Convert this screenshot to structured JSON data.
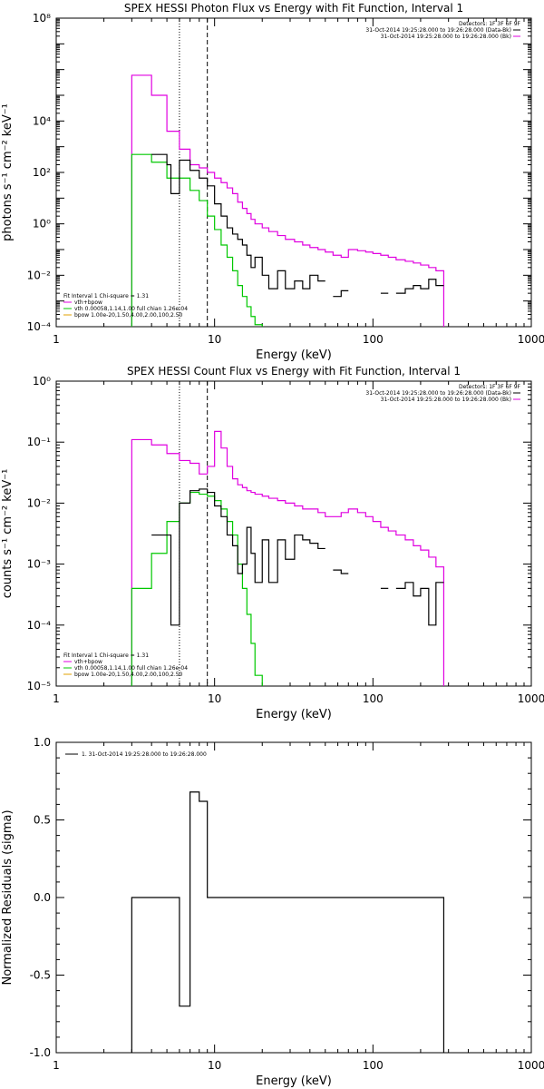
{
  "colors": {
    "total": "#e000e0",
    "vth": "#00c800",
    "bpow": "#e0a000",
    "data": "#000000",
    "frame": "#000000",
    "background": "#ffffff"
  },
  "chart_data": [
    {
      "type": "line",
      "title": "SPEX HESSI Photon Flux vs Energy with Fit Function, Interval 1",
      "xlabel": "Energy (keV)",
      "ylabel": "photons s⁻¹ cm⁻² keV⁻¹",
      "xscale": "log",
      "yscale": "log",
      "xlim": [
        1,
        1000
      ],
      "ylim": [
        0.0001,
        100000000
      ],
      "xticks": [
        1,
        10,
        100,
        1000
      ],
      "xtick_labels": [
        "1",
        "10",
        "100",
        "1000"
      ],
      "yticks": [
        0.0001,
        0.01,
        1,
        100,
        10000,
        100000000
      ],
      "ytick_labels": [
        "10⁻⁴",
        "10⁻²",
        "10⁰",
        "10²",
        "10⁴",
        "10⁸"
      ],
      "vlines": [
        {
          "x": 6,
          "style": "dotted"
        },
        {
          "x": 9,
          "style": "dashed"
        }
      ],
      "legend_top": [
        "Detectors: 1F 3F 6F 9F",
        "31-Oct-2014 19:25:28.000 to 19:26:28.000 (Data-Bk)",
        "31-Oct-2014 19:25:28.000 to 19:26:28.000 (Bk)"
      ],
      "legend_bottom": [
        "Fit Interval 1    Chi-square = 1.31",
        "vth+bpow",
        "vth 0.00058,1.14,1.00  full chian 1.26e-04",
        "bpow 1.00e-20,1.50,4.00,2.00,100,2.50"
      ],
      "series": [
        {
          "name": "vth+bpow",
          "color": "#e000e0",
          "edges": [
            3,
            4,
            5,
            6,
            7,
            8,
            9,
            10,
            11,
            12,
            13,
            14,
            15,
            16,
            17,
            18,
            20,
            22,
            25,
            28,
            32,
            36,
            40,
            45,
            50,
            56,
            63,
            70,
            80,
            90,
            100,
            112,
            125,
            140,
            160,
            180,
            200,
            225,
            250,
            280
          ],
          "values": [
            600000,
            100000,
            4000,
            800,
            200,
            150,
            100,
            60,
            40,
            25,
            15,
            7,
            4,
            2.5,
            1.5,
            1,
            0.7,
            0.5,
            0.35,
            0.25,
            0.2,
            0.15,
            0.12,
            0.1,
            0.08,
            0.06,
            0.05,
            0.1,
            0.09,
            0.08,
            0.07,
            0.06,
            0.05,
            0.04,
            0.035,
            0.03,
            0.025,
            0.02,
            0.015
          ],
          "floor": 0.0001
        },
        {
          "name": "vth",
          "color": "#00c800",
          "edges": [
            3,
            4,
            5,
            6,
            7,
            8,
            9,
            10,
            11,
            12,
            13,
            14,
            15,
            16,
            17,
            18,
            20
          ],
          "values": [
            500,
            250,
            60,
            60,
            20,
            8,
            2,
            0.6,
            0.15,
            0.05,
            0.015,
            0.004,
            0.0015,
            0.0006,
            0.00025,
            0.00012
          ],
          "floor": 0.0001
        },
        {
          "name": "data",
          "color": "#000000",
          "segments": [
            {
              "edges": [
                4,
                5,
                5.3,
                6,
                7,
                8,
                9,
                10,
                11,
                12,
                13,
                14,
                15,
                16,
                17,
                18,
                20,
                22,
                25,
                28,
                32,
                36,
                40,
                45,
                50
              ],
              "values": [
                500,
                200,
                15,
                300,
                120,
                60,
                30,
                6,
                2,
                0.7,
                0.4,
                0.25,
                0.15,
                0.06,
                0.02,
                0.05,
                0.01,
                0.003,
                0.015,
                0.003,
                0.006,
                0.003,
                0.01,
                0.006
              ]
            },
            {
              "edges": [
                56,
                63,
                70
              ],
              "values": [
                0.0015,
                0.0025
              ]
            },
            {
              "edges": [
                112,
                125
              ],
              "values": [
                0.002
              ]
            },
            {
              "edges": [
                140,
                160,
                180,
                200,
                225,
                250,
                280
              ],
              "values": [
                0.002,
                0.003,
                0.004,
                0.003,
                0.007,
                0.004
              ]
            }
          ]
        }
      ]
    },
    {
      "type": "line",
      "title": "SPEX HESSI Count Flux vs Energy with Fit Function, Interval 1",
      "xlabel": "Energy (keV)",
      "ylabel": "counts s⁻¹ cm⁻² keV⁻¹",
      "xscale": "log",
      "yscale": "log",
      "xlim": [
        1,
        1000
      ],
      "ylim": [
        1e-05,
        1
      ],
      "xticks": [
        1,
        10,
        100,
        1000
      ],
      "xtick_labels": [
        "1",
        "10",
        "100",
        "1000"
      ],
      "yticks": [
        1e-05,
        0.0001,
        0.001,
        0.01,
        0.1,
        1
      ],
      "ytick_labels": [
        "10⁻⁵",
        "10⁻⁴",
        "10⁻³",
        "10⁻²",
        "10⁻¹",
        "10⁰"
      ],
      "vlines": [
        {
          "x": 6,
          "style": "dotted"
        },
        {
          "x": 9,
          "style": "dashed"
        }
      ],
      "legend_top": [
        "Detectors: 1F 3F 6F 9F",
        "31-Oct-2014 19:25:28.000 to 19:26:28.000 (Data-Bk)",
        "31-Oct-2014 19:25:28.000 to 19:26:28.000 (Bk)"
      ],
      "legend_bottom": [
        "Fit Interval 1    Chi-square = 1.31",
        "vth+bpow",
        "vth 0.00058,1.14,1.00  full chian 1.26e-04",
        "bpow 1.00e-20,1.50,4.00,2.00,100,2.50"
      ],
      "series": [
        {
          "name": "vth+bpow",
          "color": "#e000e0",
          "edges": [
            3,
            4,
            5,
            6,
            7,
            8,
            9,
            10,
            11,
            12,
            13,
            14,
            15,
            16,
            17,
            18,
            20,
            22,
            25,
            28,
            32,
            36,
            40,
            45,
            50,
            56,
            63,
            70,
            80,
            90,
            100,
            112,
            125,
            140,
            160,
            180,
            200,
            225,
            250,
            280
          ],
          "values": [
            0.11,
            0.09,
            0.065,
            0.05,
            0.045,
            0.03,
            0.04,
            0.15,
            0.08,
            0.04,
            0.025,
            0.02,
            0.018,
            0.016,
            0.015,
            0.014,
            0.013,
            0.012,
            0.011,
            0.01,
            0.009,
            0.008,
            0.008,
            0.007,
            0.006,
            0.006,
            0.007,
            0.008,
            0.007,
            0.006,
            0.005,
            0.004,
            0.0035,
            0.003,
            0.0025,
            0.002,
            0.0017,
            0.0013,
            0.0009
          ],
          "floor": 1e-05
        },
        {
          "name": "vth",
          "color": "#00c800",
          "edges": [
            3,
            4,
            5,
            6,
            7,
            8,
            9,
            10,
            11,
            12,
            13,
            14,
            15,
            16,
            17,
            18,
            20
          ],
          "values": [
            0.0004,
            0.0015,
            0.005,
            0.01,
            0.015,
            0.014,
            0.013,
            0.011,
            0.008,
            0.005,
            0.003,
            0.001,
            0.0004,
            0.00015,
            5e-05,
            1.5e-05
          ],
          "floor": 1e-05
        },
        {
          "name": "data",
          "color": "#000000",
          "segments": [
            {
              "edges": [
                4,
                5,
                5.3,
                6,
                7,
                8,
                9,
                10,
                11,
                12,
                13,
                14,
                15,
                16,
                17,
                18,
                20,
                22,
                25,
                28,
                32,
                36,
                40,
                45,
                50
              ],
              "values": [
                0.003,
                0.003,
                0.0001,
                0.01,
                0.016,
                0.017,
                0.015,
                0.009,
                0.006,
                0.003,
                0.002,
                0.0007,
                0.001,
                0.004,
                0.0015,
                0.0005,
                0.0025,
                0.0005,
                0.0025,
                0.0012,
                0.003,
                0.0025,
                0.0022,
                0.0018
              ]
            },
            {
              "edges": [
                56,
                63,
                70
              ],
              "values": [
                0.0008,
                0.0007
              ]
            },
            {
              "edges": [
                112,
                125
              ],
              "values": [
                0.0004
              ]
            },
            {
              "edges": [
                140,
                160,
                180,
                200,
                225,
                250,
                280
              ],
              "values": [
                0.0004,
                0.0005,
                0.0003,
                0.0004,
                0.0001,
                0.0005
              ]
            }
          ]
        }
      ]
    },
    {
      "type": "line",
      "title": "",
      "xlabel": "Energy (keV)",
      "ylabel": "Normalized Residuals (sigma)",
      "xscale": "log",
      "yscale": "linear",
      "xlim": [
        1,
        1000
      ],
      "ylim": [
        -1.0,
        1.0
      ],
      "xticks": [
        1,
        10,
        100,
        1000
      ],
      "xtick_labels": [
        "1",
        "10",
        "100",
        "1000"
      ],
      "yticks": [
        -1.0,
        -0.5,
        0.0,
        0.5,
        1.0
      ],
      "ytick_labels": [
        "-1.0",
        "-0.5",
        "0.0",
        "0.5",
        "1.0"
      ],
      "legend": [
        "1. 31-Oct-2014 19:25:28.000 to 19:26:28.000"
      ],
      "series": [
        {
          "name": "1. 31-Oct-2014 19:25:28.000 to 19:26:28.000",
          "color": "#000000",
          "edges": [
            3,
            6,
            7,
            8,
            9,
            280
          ],
          "values": [
            0.0,
            -0.7,
            0.68,
            0.62,
            0.0
          ],
          "floor": -1.0
        }
      ]
    }
  ]
}
